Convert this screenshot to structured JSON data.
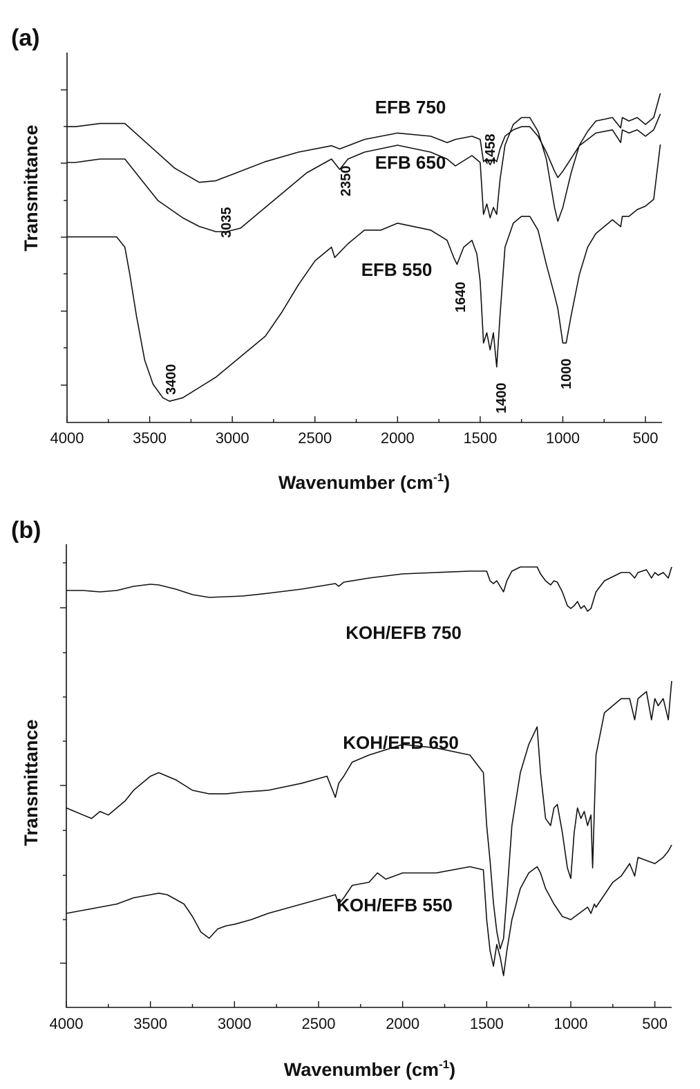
{
  "chart_data": [
    {
      "panel": "(a)",
      "type": "line",
      "xlabel": "Wavenumber (cm",
      "xlabel_sup": "-1",
      "xlabel_tail": ")",
      "ylabel": "Transmittance",
      "xlim": [
        4000,
        400
      ],
      "x_ticks": [
        "4000",
        "3500",
        "3000",
        "2500",
        "2000",
        "1500",
        "1000",
        "500"
      ],
      "grid": false,
      "series": [
        {
          "name": "EFB 750",
          "x": [
            4000,
            3950,
            3800,
            3650,
            3500,
            3350,
            3200,
            3100,
            3000,
            2800,
            2600,
            2400,
            2350,
            2200,
            2000,
            1800,
            1700,
            1650,
            1550,
            1500,
            1480,
            1460,
            1440,
            1420,
            1400,
            1380,
            1350,
            1300,
            1250,
            1200,
            1150,
            1100,
            1050,
            1030,
            1000,
            950,
            900,
            850,
            800,
            700,
            650,
            640,
            600,
            550,
            500,
            450,
            410
          ],
          "y": [
            93,
            93,
            94,
            94,
            87,
            80,
            75.5,
            76,
            78,
            82,
            85,
            87,
            86,
            89,
            91,
            90,
            88,
            89,
            90,
            89,
            82,
            83,
            81,
            83,
            82,
            86,
            90,
            92,
            93,
            93,
            90,
            85,
            79,
            77,
            79,
            83,
            87,
            89,
            91,
            92,
            88,
            92,
            91,
            92,
            90,
            92,
            97
          ]
        },
        {
          "name": "EFB 650",
          "x": [
            4000,
            3950,
            3800,
            3650,
            3550,
            3450,
            3300,
            3200,
            3100,
            3035,
            2950,
            2850,
            2700,
            2550,
            2400,
            2350,
            2300,
            2200,
            2000,
            1800,
            1700,
            1650,
            1550,
            1500,
            1480,
            1460,
            1440,
            1420,
            1400,
            1380,
            1350,
            1300,
            1250,
            1200,
            1150,
            1100,
            1050,
            1030,
            1000,
            950,
            900,
            850,
            800,
            700,
            650,
            640,
            600,
            550,
            500,
            450,
            410
          ],
          "y": [
            73,
            73,
            74,
            74,
            68,
            62,
            57,
            54.5,
            53,
            53,
            54,
            58,
            64,
            70,
            74,
            71,
            74,
            76,
            78,
            76,
            74,
            72,
            75,
            73,
            58,
            61,
            57,
            60,
            58,
            68,
            78,
            84,
            86,
            86,
            82,
            74,
            60,
            56,
            60,
            70,
            78,
            82,
            85,
            86,
            83,
            86,
            85,
            86,
            84,
            86,
            93
          ]
        },
        {
          "name": "EFB 550",
          "x": [
            4000,
            3950,
            3800,
            3700,
            3650,
            3620,
            3580,
            3530,
            3480,
            3420,
            3380,
            3300,
            3200,
            3100,
            3000,
            2900,
            2800,
            2700,
            2600,
            2500,
            2400,
            2380,
            2360,
            2340,
            2300,
            2200,
            2100,
            2000,
            1900,
            1800,
            1700,
            1660,
            1640,
            1600,
            1550,
            1520,
            1500,
            1480,
            1460,
            1440,
            1420,
            1400,
            1380,
            1350,
            1300,
            1250,
            1200,
            1150,
            1100,
            1050,
            1030,
            1000,
            980,
            950,
            900,
            850,
            800,
            700,
            650,
            640,
            600,
            550,
            500,
            450,
            410
          ],
          "y": [
            53,
            53,
            53,
            53,
            50,
            42,
            30,
            17,
            10,
            6,
            5,
            6,
            9,
            12,
            16,
            20,
            24,
            31,
            39,
            46,
            50,
            47,
            48,
            49,
            51,
            55,
            55,
            57,
            56,
            55,
            52,
            47,
            45,
            50,
            52,
            48,
            40,
            22,
            25,
            20,
            25,
            15,
            30,
            50,
            57,
            59,
            59,
            55,
            45,
            36,
            32,
            22,
            22,
            30,
            42,
            50,
            54,
            58,
            56,
            59,
            59,
            61,
            62,
            64,
            80
          ]
        }
      ],
      "annotations": [
        "3400",
        "3035",
        "2350",
        "1640",
        "1458",
        "1400",
        "1000"
      ]
    },
    {
      "panel": "(b)",
      "type": "line",
      "xlabel": "Wavenumber (cm",
      "xlabel_sup": "-1",
      "xlabel_tail": ")",
      "ylabel": "Transmittance",
      "xlim": [
        4000,
        400
      ],
      "x_ticks": [
        "4000",
        "3500",
        "3000",
        "2500",
        "2000",
        "1500",
        "1000",
        "500"
      ],
      "grid": false,
      "series": [
        {
          "name": "KOH/EFB 750",
          "x": [
            4000,
            3900,
            3800,
            3700,
            3600,
            3500,
            3450,
            3350,
            3250,
            3150,
            3050,
            2950,
            2800,
            2600,
            2400,
            2380,
            2350,
            2200,
            2000,
            1800,
            1600,
            1500,
            1480,
            1460,
            1440,
            1420,
            1400,
            1380,
            1350,
            1300,
            1200,
            1180,
            1150,
            1120,
            1100,
            1080,
            1050,
            1020,
            1000,
            980,
            960,
            940,
            920,
            900,
            880,
            850,
            800,
            700,
            650,
            620,
            600,
            550,
            520,
            500,
            480,
            450,
            420,
            400
          ],
          "y": [
            73,
            73,
            72,
            73,
            76,
            77.5,
            77,
            74,
            70,
            68,
            68.5,
            69,
            71,
            74,
            78,
            76,
            79,
            82,
            85,
            86,
            87,
            87,
            80,
            78,
            80,
            76,
            72,
            80,
            87,
            90,
            90,
            85,
            80,
            77,
            80,
            79,
            72,
            62,
            60,
            62,
            65,
            60,
            62,
            58,
            60,
            72,
            80,
            86,
            86,
            82,
            86,
            88,
            82,
            86,
            84,
            86,
            82,
            90
          ]
        },
        {
          "name": "KOH/EFB 650",
          "x": [
            4000,
            3950,
            3900,
            3850,
            3800,
            3750,
            3700,
            3650,
            3600,
            3550,
            3500,
            3450,
            3350,
            3250,
            3150,
            3050,
            2950,
            2800,
            2600,
            2450,
            2400,
            2380,
            2350,
            2300,
            2200,
            2000,
            1800,
            1600,
            1520,
            1500,
            1480,
            1460,
            1440,
            1420,
            1400,
            1380,
            1350,
            1300,
            1250,
            1200,
            1180,
            1150,
            1120,
            1100,
            1080,
            1050,
            1020,
            1000,
            980,
            960,
            940,
            920,
            900,
            880,
            870,
            850,
            800,
            700,
            650,
            620,
            600,
            550,
            520,
            500,
            480,
            450,
            420,
            400
          ],
          "y": [
            45,
            44,
            43,
            42,
            44,
            43,
            45,
            47,
            50,
            52,
            54,
            55,
            53,
            50,
            49,
            49,
            49.5,
            50,
            52,
            54,
            48,
            52,
            54,
            58,
            60,
            63,
            62,
            60,
            55,
            40,
            30,
            18,
            10,
            5,
            8,
            20,
            40,
            55,
            63,
            68,
            55,
            42,
            40,
            45,
            46,
            38,
            28,
            25,
            38,
            45,
            42,
            44,
            40,
            43,
            28,
            60,
            72,
            76,
            76,
            70,
            76,
            78,
            70,
            76,
            74,
            76,
            70,
            81
          ]
        },
        {
          "name": "KOH/EFB 550",
          "x": [
            4000,
            3900,
            3800,
            3700,
            3600,
            3500,
            3450,
            3400,
            3300,
            3250,
            3200,
            3150,
            3100,
            3050,
            3000,
            2900,
            2800,
            2600,
            2400,
            2380,
            2350,
            2300,
            2200,
            2150,
            2100,
            2000,
            1800,
            1600,
            1520,
            1500,
            1480,
            1460,
            1440,
            1420,
            1400,
            1380,
            1350,
            1300,
            1250,
            1200,
            1180,
            1150,
            1100,
            1050,
            1000,
            950,
            900,
            880,
            860,
            850,
            800,
            750,
            700,
            650,
            620,
            600,
            550,
            500,
            450,
            420,
            400
          ],
          "y": [
            12,
            13,
            14,
            15,
            17,
            18,
            18.5,
            18,
            15,
            11,
            6,
            4,
            7,
            8,
            8.5,
            10,
            12,
            15,
            18,
            15,
            17,
            21,
            22,
            25,
            23,
            25,
            25,
            27,
            26,
            10,
            0,
            -5,
            2,
            -2,
            -8,
            0,
            10,
            20,
            25,
            27,
            25,
            20,
            15,
            11,
            10,
            12,
            14,
            12,
            15,
            14,
            18,
            22,
            24,
            28,
            24,
            30,
            29,
            28,
            30,
            32,
            34
          ]
        }
      ]
    }
  ]
}
